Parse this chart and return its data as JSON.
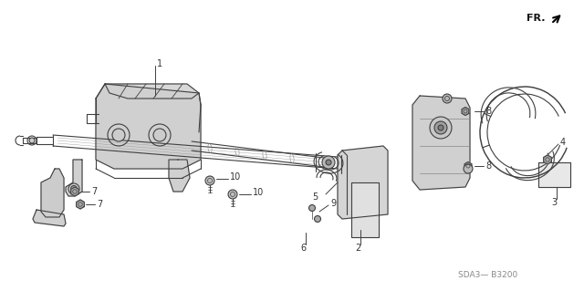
{
  "background_color": "#ffffff",
  "line_color": "#404040",
  "text_color": "#333333",
  "fr_text": "FR.",
  "part_code": "SDA3— B3200",
  "label_fs": 7.0,
  "lw": 0.8
}
